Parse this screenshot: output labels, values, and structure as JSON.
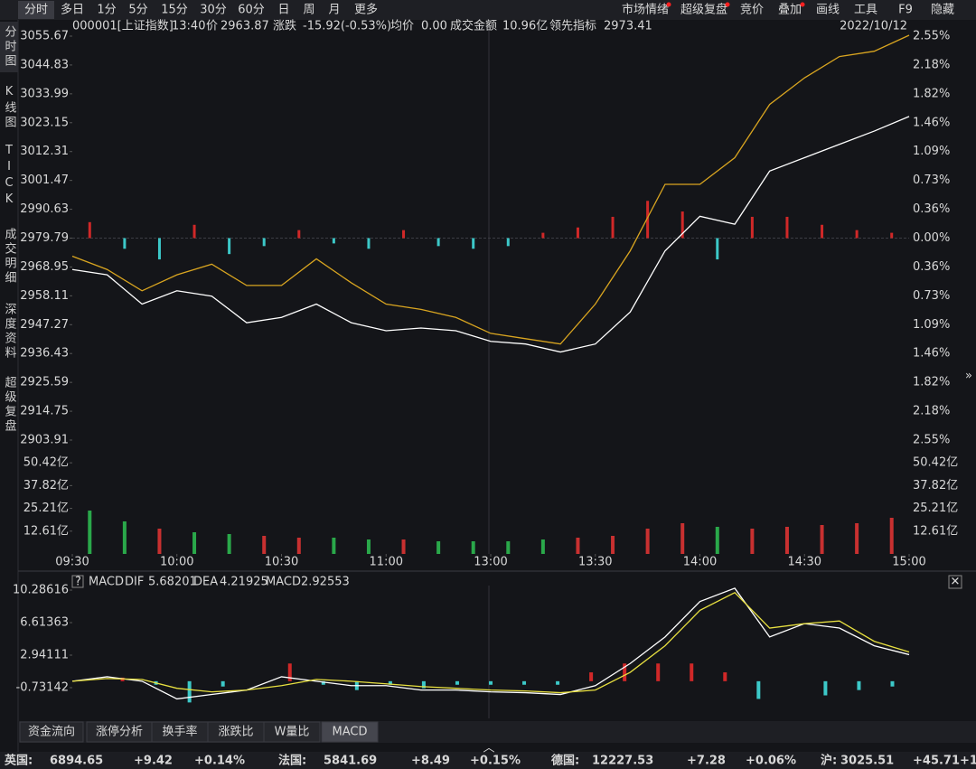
{
  "toolbar": {
    "left": [
      "分时",
      "多日",
      "1分",
      "5分",
      "15分",
      "30分",
      "60分",
      "日",
      "周",
      "月",
      "更多"
    ],
    "right": [
      "市场情绪",
      "超级复盘",
      "竞价",
      "叠加",
      "画线",
      "工具",
      "F9",
      "隐藏"
    ]
  },
  "sidebar": [
    "分时图",
    "K线图",
    "TICK",
    "成交明细",
    "深度资料",
    "超级复盘"
  ],
  "info": {
    "code": "000001[上证指数]",
    "time": "13:40",
    "price_label": "价",
    "price": "2963.87",
    "change_label": "涨跌",
    "change": "-15.92(-0.53%)",
    "avg_label": "均价",
    "avg": "0.00",
    "amount_label": "成交金额",
    "amount": "10.96亿",
    "lead_label": "领先指标",
    "lead": "2973.41",
    "date": "2022/10/12"
  },
  "chart_data": [
    {
      "type": "line",
      "x": [
        0,
        10,
        20,
        30,
        40,
        50,
        60,
        70,
        80,
        90,
        100,
        110,
        120,
        130,
        140,
        150,
        160,
        170,
        180,
        190,
        200,
        210,
        220,
        230,
        240
      ],
      "xlim": [
        0,
        240
      ],
      "xticks": [
        {
          "value": 0,
          "label": "09:30"
        },
        {
          "value": 30,
          "label": "10:00"
        },
        {
          "value": 60,
          "label": "10:30"
        },
        {
          "value": 90,
          "label": "11:00"
        },
        {
          "value": 120,
          "label": "13:00"
        },
        {
          "value": 150,
          "label": "13:30"
        },
        {
          "value": 180,
          "label": "14:00"
        },
        {
          "value": 210,
          "label": "14:30"
        },
        {
          "value": 240,
          "label": "15:00"
        }
      ],
      "ylim": [
        2903.91,
        3055.67
      ],
      "yticks": [
        3055.67,
        3044.83,
        3033.99,
        3023.15,
        3012.31,
        3001.47,
        2990.63,
        2979.79,
        2968.95,
        2958.11,
        2947.27,
        2936.43,
        2925.59,
        2914.75,
        2903.91
      ],
      "pct_labels": [
        "2.55%",
        "2.18%",
        "1.82%",
        "1.46%",
        "1.09%",
        "0.73%",
        "0.36%",
        "0.00%",
        "0.36%",
        "0.73%",
        "1.09%",
        "1.46%",
        "1.82%",
        "2.18%",
        "2.55%"
      ],
      "baseline": 2979.79,
      "series": [
        {
          "name": "价",
          "color": "#ffffff",
          "values": [
            2968,
            2966,
            2955,
            2960,
            2958,
            2948,
            2950,
            2955,
            2948,
            2945,
            2946,
            2945,
            2941,
            2940,
            2937,
            2940,
            2952,
            2975,
            2988,
            2985,
            3005,
            3010,
            3015,
            3020,
            3025.5
          ]
        },
        {
          "name": "领先指标",
          "color": "#d9a520",
          "values": [
            2973,
            2968,
            2960,
            2966,
            2970,
            2962,
            2962,
            2972,
            2963,
            2955,
            2953,
            2950,
            2944,
            2942,
            2940,
            2955,
            2975,
            3000,
            3000,
            3010,
            3030,
            3040,
            3048,
            3050,
            3056
          ]
        }
      ],
      "bars": [
        6,
        -4,
        -8,
        5,
        -6,
        -3,
        3,
        -2,
        -4,
        3,
        -3,
        -4,
        -3,
        2,
        4,
        8,
        14,
        10,
        -8,
        8,
        8,
        5,
        3,
        2
      ]
    },
    {
      "type": "bar",
      "x": [
        5,
        15,
        25,
        35,
        45,
        55,
        65,
        75,
        85,
        95,
        105,
        115,
        125,
        135,
        145,
        155,
        165,
        175,
        185,
        195,
        205,
        215,
        225,
        235
      ],
      "xlim": [
        0,
        240
      ],
      "ylim": [
        0,
        56.5
      ],
      "yticks": [
        {
          "value": 50.42,
          "label": "50.42亿"
        },
        {
          "value": 37.82,
          "label": "37.82亿"
        },
        {
          "value": 25.21,
          "label": "25.21亿"
        },
        {
          "value": 12.61,
          "label": "12.61亿"
        }
      ],
      "values": [
        24,
        18,
        14,
        12,
        11,
        10,
        9,
        9,
        8,
        8,
        7,
        7,
        7,
        8,
        9,
        10,
        14,
        17,
        15,
        14,
        15,
        16,
        17,
        20
      ],
      "up_color": "#c83030",
      "down_color": "#2aa84a"
    },
    {
      "type": "macd",
      "x": [
        0,
        10,
        20,
        30,
        40,
        50,
        60,
        70,
        80,
        90,
        100,
        110,
        120,
        130,
        140,
        150,
        160,
        170,
        180,
        190,
        200,
        210,
        220,
        230,
        240
      ],
      "xlim": [
        0,
        240
      ],
      "ylim": [
        -4.2,
        10.8
      ],
      "yticks": [
        10.28616,
        6.61363,
        2.94111,
        -0.73142
      ],
      "series": [
        {
          "name": "DIF",
          "color": "#ffffff",
          "values": [
            0,
            0.5,
            0,
            -2,
            -1.5,
            -1,
            0.5,
            0,
            -0.5,
            -0.5,
            -1,
            -1,
            -1.2,
            -1.3,
            -1.5,
            -0.5,
            2,
            5,
            9,
            10.5,
            5,
            6.5,
            6,
            4,
            3
          ]
        },
        {
          "name": "DEA",
          "color": "#e8e040",
          "values": [
            0,
            0.3,
            0.2,
            -0.8,
            -1.2,
            -1,
            -0.5,
            0.2,
            0,
            -0.3,
            -0.6,
            -0.8,
            -1,
            -1.1,
            -1.3,
            -1,
            1,
            4,
            8,
            10,
            6,
            6.5,
            6.8,
            4.5,
            3.3
          ]
        }
      ],
      "bars": [
        0,
        0.4,
        -0.4,
        -2.4,
        -0.6,
        0,
        2,
        -0.4,
        -1,
        -0.4,
        -0.8,
        -0.4,
        -0.4,
        -0.4,
        -0.4,
        1,
        2,
        2,
        2,
        1,
        -2,
        0,
        -1.6,
        -1,
        -0.6
      ]
    }
  ],
  "macd_header": {
    "help": "?",
    "name": "MACD",
    "dif_label": "DIF",
    "dif": "5.68201",
    "dea_label": "DEA",
    "dea": "4.21925",
    "macd_label": "MACD",
    "macd": "2.92553"
  },
  "bottom_tabs": [
    "资金流向",
    "涨停分析",
    "换手率",
    "涨跌比",
    "W量比",
    "MACD"
  ],
  "status_bar": [
    "英国:",
    "6894.65",
    "+9.42",
    "+0.14%",
    "法国:",
    "5841.69",
    "+8.49",
    "+0.15%",
    "德国:",
    "12227.53",
    "+7.28",
    "+0.06%",
    "沪:",
    "3025.51",
    "+45.71",
    "+1"
  ]
}
